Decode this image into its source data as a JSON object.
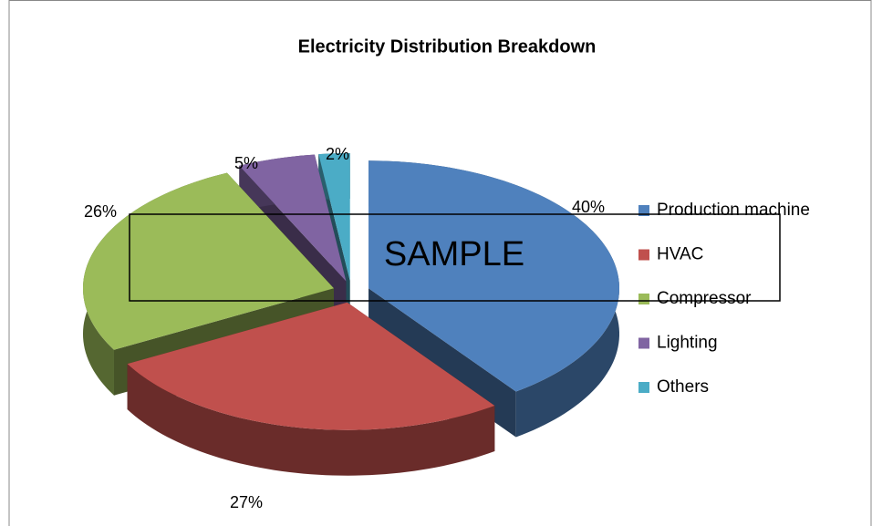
{
  "chart_data": {
    "type": "pie3d",
    "title": "Electricity Distribution Breakdown",
    "categories": [
      "Production machine",
      "HVAC",
      "Compressor",
      "Lighting",
      "Others"
    ],
    "values": [
      40,
      27,
      26,
      5,
      2
    ],
    "value_labels": [
      "40%",
      "27%",
      "26%",
      "5%",
      "2%"
    ],
    "colors": [
      "#4f81bd",
      "#c0504d",
      "#9bbb59",
      "#8064a2",
      "#4bacc6"
    ],
    "legend": "right",
    "watermark": "SAMPLE"
  }
}
